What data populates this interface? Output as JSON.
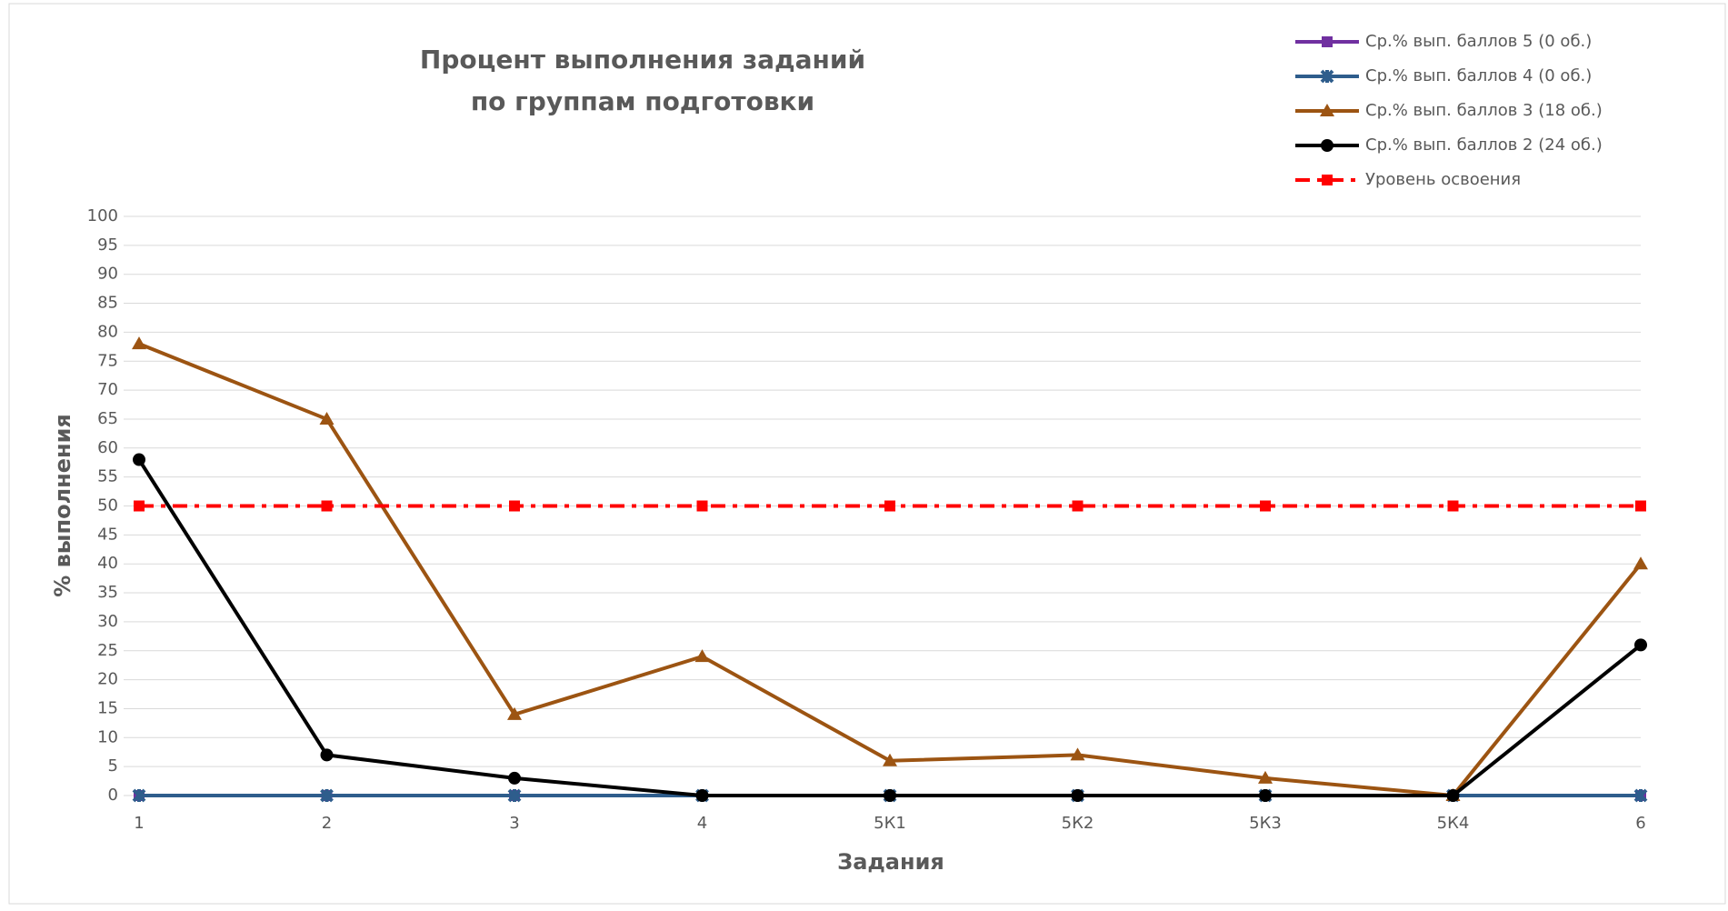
{
  "chart_data": {
    "type": "line",
    "title": [
      "Процент выполнения заданий",
      "по группам подготовки"
    ],
    "x_label": "Задания",
    "y_label": "% выполнения",
    "categories": [
      "1",
      "2",
      "3",
      "4",
      "5К1",
      "5К2",
      "5К3",
      "5К4",
      "6"
    ],
    "series": [
      {
        "name": "Ср.% вып. баллов 5 (0 об.)",
        "color": "#7030a0",
        "marker": "square",
        "values": [
          0,
          0,
          0,
          0,
          0,
          0,
          0,
          0,
          0
        ]
      },
      {
        "name": "Ср.% вып. баллов 4 (0 об.)",
        "color": "#2e5d8c",
        "marker": "star",
        "values": [
          0,
          0,
          0,
          0,
          0,
          0,
          0,
          0,
          0
        ]
      },
      {
        "name": "Ср.% вып. баллов 3 (18 об.)",
        "color": "#9c5412",
        "marker": "triangle",
        "values": [
          78,
          65,
          14,
          24,
          6,
          7,
          3,
          0,
          40
        ]
      },
      {
        "name": "Ср.% вып. баллов 2 (24 об.)",
        "color": "#000000",
        "marker": "circle",
        "values": [
          58,
          7,
          3,
          0,
          0,
          0,
          0,
          0,
          26
        ]
      },
      {
        "name": "Уровень освоения",
        "color": "#ff0000",
        "marker": "square",
        "dashed": true,
        "values": [
          50,
          50,
          50,
          50,
          50,
          50,
          50,
          50,
          50
        ]
      }
    ],
    "ylim": [
      0,
      100
    ],
    "yticks": [
      0,
      5,
      10,
      15,
      20,
      25,
      30,
      35,
      40,
      45,
      50,
      55,
      60,
      65,
      70,
      75,
      80,
      85,
      90,
      95,
      100
    ],
    "grid": true,
    "legend": "top-right"
  }
}
